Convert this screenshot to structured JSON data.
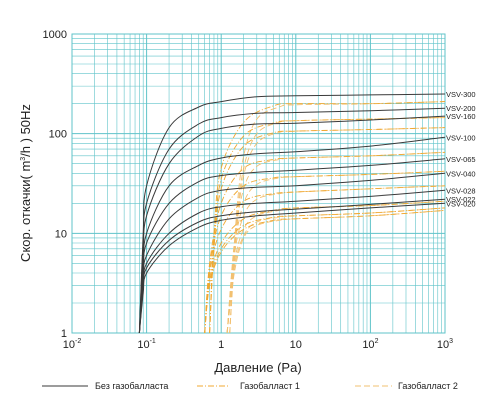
{
  "chart_data": {
    "type": "line",
    "title": "",
    "xlabel": "Давление (Pa)",
    "ylabel": "Скор. откачки　( m³/h ) 50Hz",
    "ylabel_parts": [
      "Скор. откачки",
      "( m",
      "3",
      "/h ) 50Hz"
    ],
    "x_scale": "log",
    "y_scale": "log",
    "xlim": [
      0.01,
      1000
    ],
    "ylim": [
      1,
      1000
    ],
    "x_ticks": [
      {
        "base": "10",
        "exp": "-2",
        "value": 0.01
      },
      {
        "base": "10",
        "exp": "-1",
        "value": 0.1
      },
      {
        "base": "1",
        "exp": "",
        "value": 1
      },
      {
        "base": "10",
        "exp": "",
        "value": 10
      },
      {
        "base": "10",
        "exp": "2",
        "value": 100
      },
      {
        "base": "10",
        "exp": "3",
        "value": 1000
      }
    ],
    "y_ticks": [
      {
        "label": "1",
        "value": 1
      },
      {
        "label": "10",
        "value": 10
      },
      {
        "label": "100",
        "value": 100
      },
      {
        "label": "1000",
        "value": 1000
      }
    ],
    "grid": true,
    "grid_color": "#5fc3c9",
    "series_color": "#3a3a3a",
    "ballast1_color": "#f0a830",
    "ballast2_color": "#f2c070",
    "legend": [
      {
        "label": "Без газобалласта",
        "style": "solid"
      },
      {
        "label": "Газобалласт 1",
        "style": "dashdot"
      },
      {
        "label": "Газобалласт 2",
        "style": "dashed"
      }
    ],
    "series": [
      {
        "name": "VSV-300",
        "no_ballast": [
          [
            0.08,
            1
          ],
          [
            0.09,
            10
          ],
          [
            0.1,
            30
          ],
          [
            0.2,
            115
          ],
          [
            0.5,
            185
          ],
          [
            1,
            210
          ],
          [
            3,
            235
          ],
          [
            10,
            240
          ],
          [
            100,
            245
          ],
          [
            1000,
            250
          ]
        ],
        "ballast1": [
          [
            0.7,
            1
          ],
          [
            0.8,
            10
          ],
          [
            1,
            45
          ],
          [
            2,
            130
          ],
          [
            5,
            190
          ],
          [
            10,
            200
          ],
          [
            100,
            200
          ],
          [
            1000,
            210
          ]
        ],
        "ballast2": [
          [
            1.3,
            1
          ],
          [
            1.6,
            15
          ],
          [
            2,
            60
          ],
          [
            3,
            140
          ],
          [
            6,
            185
          ],
          [
            10,
            195
          ],
          [
            100,
            200
          ],
          [
            1000,
            210
          ]
        ]
      },
      {
        "name": "VSV-200",
        "no_ballast": [
          [
            0.08,
            1
          ],
          [
            0.09,
            8
          ],
          [
            0.1,
            20
          ],
          [
            0.2,
            70
          ],
          [
            0.5,
            125
          ],
          [
            1,
            145
          ],
          [
            3,
            160
          ],
          [
            10,
            163
          ],
          [
            100,
            170
          ],
          [
            1000,
            180
          ]
        ],
        "ballast1": [
          [
            0.7,
            1
          ],
          [
            0.8,
            8
          ],
          [
            1,
            35
          ],
          [
            2,
            95
          ],
          [
            5,
            128
          ],
          [
            10,
            135
          ],
          [
            100,
            140
          ],
          [
            1000,
            145
          ]
        ],
        "ballast2": [
          [
            1.3,
            1
          ],
          [
            1.6,
            12
          ],
          [
            2,
            45
          ],
          [
            3,
            100
          ],
          [
            6,
            130
          ],
          [
            10,
            135
          ],
          [
            100,
            140
          ],
          [
            1000,
            145
          ]
        ]
      },
      {
        "name": "VSV-160",
        "no_ballast": [
          [
            0.08,
            1
          ],
          [
            0.09,
            6
          ],
          [
            0.1,
            15
          ],
          [
            0.2,
            50
          ],
          [
            0.5,
            95
          ],
          [
            1,
            113
          ],
          [
            3,
            125
          ],
          [
            10,
            127
          ],
          [
            100,
            137
          ],
          [
            1000,
            150
          ]
        ],
        "ballast1": [
          [
            0.7,
            1
          ],
          [
            0.8,
            7
          ],
          [
            1,
            28
          ],
          [
            2,
            75
          ],
          [
            5,
            102
          ],
          [
            10,
            106
          ],
          [
            100,
            110
          ],
          [
            1000,
            115
          ]
        ],
        "ballast2": [
          [
            1.3,
            1
          ],
          [
            1.6,
            10
          ],
          [
            2,
            38
          ],
          [
            3,
            80
          ],
          [
            6,
            103
          ],
          [
            10,
            106
          ],
          [
            100,
            110
          ],
          [
            1000,
            115
          ]
        ]
      },
      {
        "name": "VSV-100",
        "no_ballast": [
          [
            0.08,
            1
          ],
          [
            0.09,
            4.5
          ],
          [
            0.1,
            10
          ],
          [
            0.2,
            30
          ],
          [
            0.5,
            48
          ],
          [
            1,
            57
          ],
          [
            3,
            63
          ],
          [
            10,
            66
          ],
          [
            100,
            75
          ],
          [
            1000,
            92
          ]
        ],
        "ballast1": [
          [
            0.6,
            1
          ],
          [
            0.7,
            5
          ],
          [
            1,
            20
          ],
          [
            2,
            45
          ],
          [
            5,
            55
          ],
          [
            10,
            57
          ],
          [
            100,
            60
          ],
          [
            1000,
            65
          ]
        ],
        "ballast2": [
          [
            1.2,
            1
          ],
          [
            1.5,
            8
          ],
          [
            2,
            28
          ],
          [
            3,
            47
          ],
          [
            6,
            55
          ],
          [
            10,
            57
          ],
          [
            100,
            60
          ],
          [
            1000,
            65
          ]
        ]
      },
      {
        "name": "VSV-065",
        "no_ballast": [
          [
            0.08,
            1
          ],
          [
            0.09,
            4
          ],
          [
            0.1,
            8
          ],
          [
            0.2,
            20
          ],
          [
            0.5,
            33
          ],
          [
            1,
            38
          ],
          [
            3,
            41
          ],
          [
            10,
            43
          ],
          [
            100,
            48
          ],
          [
            1000,
            56
          ]
        ],
        "ballast1": [
          [
            0.6,
            1
          ],
          [
            0.7,
            4.5
          ],
          [
            1,
            15
          ],
          [
            2,
            30
          ],
          [
            5,
            36
          ],
          [
            10,
            37
          ],
          [
            100,
            39
          ],
          [
            1000,
            42
          ]
        ],
        "ballast2": [
          [
            1.2,
            1
          ],
          [
            1.5,
            7
          ],
          [
            2,
            20
          ],
          [
            3,
            31
          ],
          [
            6,
            36
          ],
          [
            10,
            37
          ],
          [
            100,
            39
          ],
          [
            1000,
            42
          ]
        ]
      },
      {
        "name": "VSV-040",
        "no_ballast": [
          [
            0.08,
            1
          ],
          [
            0.09,
            3.5
          ],
          [
            0.1,
            6
          ],
          [
            0.2,
            14
          ],
          [
            0.5,
            23
          ],
          [
            1,
            27
          ],
          [
            3,
            29
          ],
          [
            10,
            30
          ],
          [
            100,
            34
          ],
          [
            1000,
            40
          ]
        ],
        "ballast1": [
          [
            0.6,
            1
          ],
          [
            0.7,
            4
          ],
          [
            1,
            11
          ],
          [
            2,
            21
          ],
          [
            5,
            25
          ],
          [
            10,
            26
          ],
          [
            100,
            28
          ],
          [
            1000,
            30
          ]
        ],
        "ballast2": [
          [
            1.2,
            1
          ],
          [
            1.5,
            6
          ],
          [
            2,
            15
          ],
          [
            3,
            22
          ],
          [
            6,
            25
          ],
          [
            10,
            26
          ],
          [
            100,
            28
          ],
          [
            1000,
            30
          ]
        ]
      },
      {
        "name": "VSV-028",
        "no_ballast": [
          [
            0.08,
            1
          ],
          [
            0.09,
            3
          ],
          [
            0.1,
            5
          ],
          [
            0.2,
            10
          ],
          [
            0.5,
            16
          ],
          [
            1,
            18.5
          ],
          [
            3,
            20
          ],
          [
            10,
            21
          ],
          [
            100,
            23.5
          ],
          [
            1000,
            27
          ]
        ],
        "ballast1": [
          [
            0.6,
            1
          ],
          [
            0.7,
            3.5
          ],
          [
            1,
            8
          ],
          [
            2,
            14
          ],
          [
            5,
            17
          ],
          [
            10,
            18
          ],
          [
            100,
            19
          ],
          [
            1000,
            21
          ]
        ],
        "ballast2": [
          [
            1.2,
            1
          ],
          [
            1.5,
            5
          ],
          [
            2,
            11
          ],
          [
            3,
            15
          ],
          [
            6,
            17
          ],
          [
            10,
            18
          ],
          [
            100,
            19
          ],
          [
            1000,
            21
          ]
        ]
      },
      {
        "name": "VSV-022",
        "no_ballast": [
          [
            0.08,
            1
          ],
          [
            0.09,
            2.8
          ],
          [
            0.1,
            4.5
          ],
          [
            0.2,
            8.5
          ],
          [
            0.5,
            13
          ],
          [
            1,
            15
          ],
          [
            3,
            16.5
          ],
          [
            10,
            17.5
          ],
          [
            100,
            19.5
          ],
          [
            1000,
            22
          ]
        ],
        "ballast1": [
          [
            0.6,
            1
          ],
          [
            0.7,
            3.2
          ],
          [
            1,
            7
          ],
          [
            2,
            12
          ],
          [
            5,
            14.5
          ],
          [
            10,
            15
          ],
          [
            100,
            16
          ],
          [
            1000,
            18
          ]
        ],
        "ballast2": [
          [
            1.2,
            1
          ],
          [
            1.5,
            4.5
          ],
          [
            2,
            9.5
          ],
          [
            3,
            13
          ],
          [
            6,
            14.5
          ],
          [
            10,
            15
          ],
          [
            100,
            16
          ],
          [
            1000,
            18
          ]
        ]
      },
      {
        "name": "VSV-020",
        "no_ballast": [
          [
            0.08,
            1
          ],
          [
            0.09,
            2.5
          ],
          [
            0.1,
            4
          ],
          [
            0.2,
            7.5
          ],
          [
            0.5,
            11.5
          ],
          [
            1,
            13.5
          ],
          [
            3,
            15
          ],
          [
            10,
            16
          ],
          [
            100,
            18
          ],
          [
            1000,
            20
          ]
        ],
        "ballast1": [
          [
            0.6,
            1
          ],
          [
            0.7,
            3
          ],
          [
            1,
            6.5
          ],
          [
            2,
            11
          ],
          [
            5,
            13.5
          ],
          [
            10,
            14
          ],
          [
            100,
            15
          ],
          [
            1000,
            17
          ]
        ],
        "ballast2": [
          [
            1.2,
            1
          ],
          [
            1.5,
            4
          ],
          [
            2,
            9
          ],
          [
            3,
            12
          ],
          [
            6,
            13.5
          ],
          [
            10,
            14
          ],
          [
            100,
            15
          ],
          [
            1000,
            17
          ]
        ]
      }
    ]
  }
}
